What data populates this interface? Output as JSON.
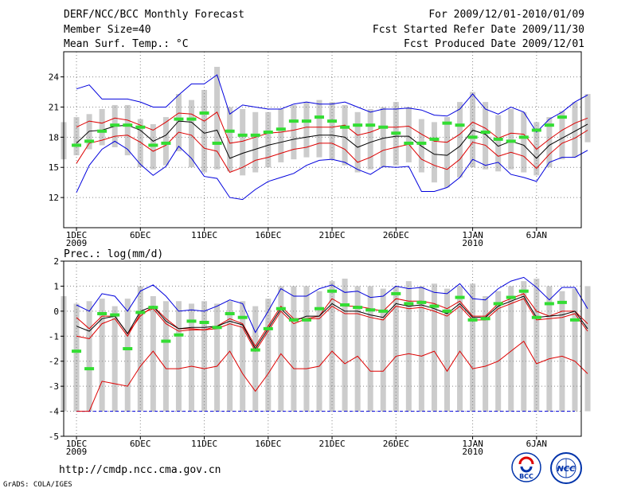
{
  "header": {
    "left": [
      "DERF/NCC/BCC Monthly Forecast",
      "Member Size=40",
      "Mean Surf. Temp.: °C"
    ],
    "right": [
      "For 2009/12/01-2010/01/09",
      "Fcst Started Refer Date 2009/11/30",
      "Fcst Produced Date 2009/12/01"
    ]
  },
  "footer": {
    "url": "http://cmdp.ncc.cma.gov.cn",
    "grads": "GrADS: COLA/IGES"
  },
  "logos": {
    "bcc": "BCC",
    "ncc": "NCC"
  },
  "colors": {
    "bar": "#cccccc",
    "obs": "#33dd33",
    "outer": "#0000dd",
    "inner": "#dd0000",
    "mean": "#000000",
    "grid": "#888888"
  },
  "chart_data": [
    {
      "type": "line",
      "title": "Mean Surf. Temp.: °C",
      "x_tick_labels": [
        {
          "day": 1,
          "lines": [
            "1DEC",
            "2009"
          ]
        },
        {
          "day": 6,
          "lines": [
            "6DEC"
          ]
        },
        {
          "day": 11,
          "lines": [
            "11DEC"
          ]
        },
        {
          "day": 16,
          "lines": [
            "16DEC"
          ]
        },
        {
          "day": 21,
          "lines": [
            "21DEC"
          ]
        },
        {
          "day": 26,
          "lines": [
            "26DEC"
          ]
        },
        {
          "day": 32,
          "lines": [
            "1JAN",
            "2010"
          ]
        },
        {
          "day": 37,
          "lines": [
            "6JAN"
          ]
        }
      ],
      "xlim": [
        0,
        40.5
      ],
      "ylim": [
        9,
        26.5
      ],
      "yticks": [
        12,
        15,
        18,
        21,
        24
      ],
      "bars": [
        [
          15.8,
          19.5
        ],
        [
          16.2,
          20.0
        ],
        [
          16.8,
          20.3
        ],
        [
          17.2,
          20.8
        ],
        [
          17.0,
          21.2
        ],
        [
          16.2,
          21.2
        ],
        [
          15.0,
          19.8
        ],
        [
          14.8,
          19.3
        ],
        [
          15.2,
          20.0
        ],
        [
          16.6,
          22.3
        ],
        [
          15.0,
          21.7
        ],
        [
          14.5,
          22.7
        ],
        [
          14.8,
          25.0
        ],
        [
          14.6,
          21.0
        ],
        [
          14.2,
          20.8
        ],
        [
          14.5,
          20.5
        ],
        [
          15.0,
          20.5
        ],
        [
          15.5,
          20.8
        ],
        [
          15.8,
          21.2
        ],
        [
          16.0,
          21.5
        ],
        [
          16.0,
          21.7
        ],
        [
          15.8,
          21.5
        ],
        [
          15.2,
          21.2
        ],
        [
          14.5,
          20.5
        ],
        [
          14.8,
          20.8
        ],
        [
          15.0,
          21.0
        ],
        [
          15.2,
          21.5
        ],
        [
          15.5,
          21.0
        ],
        [
          14.5,
          19.8
        ],
        [
          13.5,
          19.5
        ],
        [
          13.0,
          20.0
        ],
        [
          14.0,
          21.5
        ],
        [
          15.0,
          22.5
        ],
        [
          14.8,
          21.5
        ],
        [
          14.6,
          20.2
        ],
        [
          14.8,
          20.8
        ],
        [
          14.5,
          20.5
        ],
        [
          14.2,
          19.5
        ],
        [
          15.0,
          20.0
        ],
        [
          15.8,
          20.6
        ],
        [
          16.0,
          21.5
        ],
        [
          17.5,
          22.3
        ]
      ],
      "series": [
        {
          "name": "max",
          "color": "outer",
          "values": [
            null,
            22.8,
            23.2,
            21.8,
            21.8,
            21.8,
            21.5,
            21.0,
            21.0,
            22.2,
            23.3,
            23.3,
            24.2,
            20.3,
            21.2,
            21.0,
            20.8,
            20.8,
            21.3,
            21.5,
            21.3,
            21.3,
            21.5,
            21.0,
            20.5,
            20.8,
            20.8,
            20.9,
            20.7,
            20.2,
            20.1,
            20.8,
            22.3,
            20.8,
            20.3,
            21.0,
            20.5,
            18.5,
            19.8,
            20.5,
            21.5,
            22.2
          ]
        },
        {
          "name": "upper",
          "color": "inner",
          "values": [
            null,
            19.0,
            19.6,
            19.4,
            19.9,
            19.7,
            19.2,
            18.7,
            19.5,
            20.4,
            20.3,
            19.6,
            20.5,
            17.4,
            17.6,
            18.0,
            18.4,
            18.5,
            18.7,
            19.0,
            19.0,
            19.0,
            19.2,
            18.2,
            18.5,
            19.0,
            19.0,
            19.1,
            18.3,
            17.6,
            17.5,
            18.3,
            19.5,
            18.9,
            17.9,
            18.4,
            18.3,
            16.8,
            17.8,
            18.7,
            19.4,
            19.9
          ]
        },
        {
          "name": "mean",
          "color": "mean",
          "values": [
            null,
            17.4,
            18.6,
            18.7,
            19.1,
            19.2,
            18.7,
            17.6,
            18.2,
            19.6,
            19.5,
            18.4,
            18.7,
            15.9,
            16.4,
            16.8,
            17.2,
            17.5,
            17.8,
            18.0,
            18.2,
            18.2,
            18.0,
            17.0,
            17.5,
            17.9,
            18.1,
            18.1,
            17.1,
            16.3,
            16.2,
            17.1,
            18.7,
            18.3,
            17.1,
            17.6,
            17.2,
            15.9,
            17.2,
            17.9,
            18.6,
            19.3
          ]
        },
        {
          "name": "lower",
          "color": "inner",
          "values": [
            null,
            15.4,
            17.4,
            17.7,
            18.1,
            18.2,
            17.5,
            16.6,
            17.2,
            18.5,
            18.2,
            16.9,
            16.6,
            14.5,
            15.0,
            15.7,
            16.0,
            16.4,
            16.8,
            17.0,
            17.4,
            17.4,
            16.8,
            15.5,
            16.0,
            16.7,
            17.0,
            17.3,
            15.8,
            15.2,
            14.8,
            15.8,
            17.5,
            17.2,
            16.1,
            16.5,
            16.1,
            14.9,
            16.3,
            17.4,
            17.9,
            18.7
          ]
        },
        {
          "name": "min",
          "color": "outer",
          "values": [
            null,
            12.5,
            15.2,
            16.8,
            17.6,
            16.8,
            15.3,
            14.2,
            15.1,
            17.1,
            15.9,
            14.1,
            13.9,
            12.0,
            11.8,
            12.8,
            13.6,
            14.0,
            14.4,
            15.2,
            15.7,
            15.8,
            15.5,
            14.8,
            14.3,
            15.1,
            15.0,
            15.1,
            12.6,
            12.6,
            13.0,
            14.0,
            15.8,
            15.2,
            15.5,
            14.3,
            14.0,
            13.6,
            15.5,
            16.0,
            16.0,
            16.7
          ]
        }
      ],
      "observations": [
        17.2,
        17.6,
        18.6,
        19.2,
        19.2,
        19.0,
        17.2,
        17.4,
        19.8,
        19.8,
        20.4,
        17.4,
        18.6,
        18.2,
        18.2,
        18.5,
        18.8,
        19.6,
        19.6,
        20.0,
        19.6,
        19.0,
        19.2,
        19.2,
        19.0,
        18.4,
        17.4,
        17.4,
        17.8,
        19.4,
        19.2,
        18.0,
        18.5,
        17.8,
        17.6,
        18.0,
        18.7,
        19.2,
        20.0
      ]
    },
    {
      "type": "line",
      "title": "Prec.: log(mm/d)",
      "x_tick_labels": [
        {
          "day": 1,
          "lines": [
            "1DEC",
            "2009"
          ]
        },
        {
          "day": 6,
          "lines": [
            "6DEC"
          ]
        },
        {
          "day": 11,
          "lines": [
            "11DEC"
          ]
        },
        {
          "day": 16,
          "lines": [
            "16DEC"
          ]
        },
        {
          "day": 21,
          "lines": [
            "21DEC"
          ]
        },
        {
          "day": 26,
          "lines": [
            "26DEC"
          ]
        },
        {
          "day": 32,
          "lines": [
            "1JAN",
            "2010"
          ]
        },
        {
          "day": 37,
          "lines": [
            "6JAN"
          ]
        }
      ],
      "xlim": [
        0,
        40.5
      ],
      "ylim": [
        -5,
        2
      ],
      "yticks": [
        -5,
        -4,
        -3,
        -2,
        -1,
        0,
        1,
        2
      ],
      "bars": [
        [
          -4,
          0.6
        ],
        [
          -4,
          0.3
        ],
        [
          -4,
          0.4
        ],
        [
          -4,
          0.5
        ],
        [
          -4,
          0.2
        ],
        [
          -4,
          0.5
        ],
        [
          -4,
          1.0
        ],
        [
          -4,
          0.6
        ],
        [
          -4,
          0.4
        ],
        [
          -4,
          0.4
        ],
        [
          -4,
          0.3
        ],
        [
          -4,
          0.4
        ],
        [
          -4,
          0.3
        ],
        [
          -4,
          0.4
        ],
        [
          -4,
          0.4
        ],
        [
          -4,
          0.2
        ],
        [
          -4,
          0.5
        ],
        [
          -4,
          1.0
        ],
        [
          -4,
          1.0
        ],
        [
          -4,
          1.0
        ],
        [
          -4,
          0.8
        ],
        [
          -4,
          1.2
        ],
        [
          -4,
          1.3
        ],
        [
          -4,
          1.0
        ],
        [
          -4,
          1.0
        ],
        [
          -4,
          0.9
        ],
        [
          -4,
          1.0
        ],
        [
          -4,
          1.2
        ],
        [
          -4,
          1.0
        ],
        [
          -4,
          1.1
        ],
        [
          -4,
          0.9
        ],
        [
          -4,
          1.0
        ],
        [
          -4,
          1.1
        ],
        [
          -4,
          0.6
        ],
        [
          -4,
          0.8
        ],
        [
          -4,
          1.0
        ],
        [
          -4,
          1.2
        ],
        [
          -4,
          1.3
        ],
        [
          -4,
          1.0
        ],
        [
          -4,
          0.8
        ],
        [
          -4,
          0.9
        ],
        [
          -4,
          1.0
        ]
      ],
      "series": [
        {
          "name": "max",
          "color": "outer",
          "values": [
            null,
            0.25,
            0.0,
            0.7,
            0.6,
            0.0,
            0.8,
            1.05,
            0.6,
            0.0,
            0.05,
            0.0,
            0.2,
            0.45,
            0.3,
            -0.85,
            0.0,
            0.9,
            0.6,
            0.6,
            0.9,
            1.05,
            0.75,
            0.8,
            0.55,
            0.6,
            1.0,
            0.9,
            0.95,
            0.75,
            0.7,
            1.1,
            0.5,
            0.45,
            0.9,
            1.2,
            1.35,
            0.95,
            0.45,
            0.95,
            0.95,
            0.1
          ]
        },
        {
          "name": "upper",
          "color": "inner",
          "values": [
            null,
            -0.25,
            -0.7,
            -0.2,
            -0.2,
            -0.9,
            -0.2,
            0.2,
            -0.3,
            -0.7,
            -0.7,
            -0.75,
            -0.6,
            -0.3,
            -0.5,
            -1.4,
            -0.6,
            0.2,
            -0.3,
            -0.3,
            -0.2,
            0.5,
            0.2,
            0.2,
            0.1,
            0.0,
            0.5,
            0.4,
            0.4,
            0.3,
            0.1,
            0.4,
            -0.2,
            -0.2,
            0.3,
            0.5,
            0.7,
            0.0,
            -0.2,
            0.0,
            0.0,
            -0.5
          ]
        },
        {
          "name": "mean",
          "color": "mean",
          "values": [
            null,
            -0.6,
            -0.8,
            -0.3,
            -0.2,
            -0.9,
            0.0,
            0.2,
            -0.4,
            -0.7,
            -0.65,
            -0.65,
            -0.6,
            -0.4,
            -0.55,
            -1.5,
            -0.7,
            0.1,
            -0.4,
            -0.2,
            -0.2,
            0.3,
            0.0,
            0.0,
            -0.15,
            -0.25,
            0.3,
            0.2,
            0.25,
            0.1,
            -0.1,
            0.3,
            -0.25,
            -0.25,
            0.2,
            0.4,
            0.6,
            -0.25,
            -0.2,
            -0.15,
            0.0,
            -0.7
          ]
        },
        {
          "name": "lower",
          "color": "inner",
          "values": [
            null,
            -1.0,
            -1.1,
            -0.5,
            -0.3,
            -1.0,
            -0.1,
            0.1,
            -0.5,
            -0.8,
            -0.75,
            -0.75,
            -0.7,
            -0.5,
            -0.65,
            -1.6,
            -0.8,
            0.0,
            -0.5,
            -0.3,
            -0.3,
            0.2,
            -0.1,
            -0.1,
            -0.25,
            -0.35,
            0.2,
            0.1,
            0.15,
            0.0,
            -0.2,
            0.2,
            -0.35,
            -0.35,
            0.1,
            0.3,
            0.5,
            -0.35,
            -0.3,
            -0.25,
            -0.1,
            -0.8
          ]
        },
        {
          "name": "lowest",
          "color": "inner",
          "values": [
            null,
            -4.0,
            -4.0,
            -2.8,
            -2.9,
            -3.0,
            -2.2,
            -1.6,
            -2.3,
            -2.3,
            -2.2,
            -2.3,
            -2.2,
            -1.6,
            -2.5,
            -3.2,
            -2.5,
            -1.7,
            -2.3,
            -2.3,
            -2.2,
            -1.6,
            -2.1,
            -1.8,
            -2.4,
            -2.4,
            -1.8,
            -1.7,
            -1.8,
            -1.6,
            -2.4,
            -1.6,
            -2.3,
            -2.2,
            -2.0,
            -1.6,
            -1.2,
            -2.1,
            -1.9,
            -1.8,
            -2.0,
            -2.5
          ]
        }
      ],
      "observations": [
        -1.6,
        -2.3,
        -0.1,
        -0.15,
        -1.5,
        -0.05,
        0.15,
        -1.2,
        -0.95,
        -0.4,
        -0.45,
        -0.65,
        -0.1,
        -0.25,
        -1.55,
        -0.7,
        0.1,
        -0.35,
        -0.35,
        0.1,
        0.8,
        0.25,
        0.15,
        0.05,
        0.0,
        0.7,
        0.3,
        0.35,
        0.2,
        0.0,
        0.55,
        -0.35,
        -0.3,
        0.3,
        0.55,
        0.8,
        -0.25,
        0.3,
        0.35,
        -0.35
      ]
    }
  ]
}
